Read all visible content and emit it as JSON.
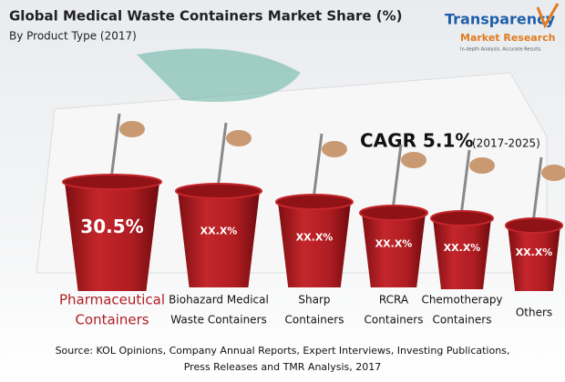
{
  "header": {
    "title": "Global Medical Waste Containers Market Share (%)",
    "subtitle": "By Product Type (2017)"
  },
  "logo": {
    "line1": "Transparency",
    "line2": "Market Research",
    "tagline": "In-depth Analysis. Accurate Results."
  },
  "cagr": {
    "label": "CAGR 5.1%",
    "period": "(2017-2025)"
  },
  "items": [
    {
      "label": [
        "Pharmaceutical",
        "Containers"
      ],
      "share": "30.5%"
    },
    {
      "label": [
        "Biohazard Medical",
        "Waste Containers"
      ],
      "share": "XX.X%"
    },
    {
      "label": [
        "Sharp",
        "Containers"
      ],
      "share": "XX.X%"
    },
    {
      "label": [
        "RCRA",
        "Containers"
      ],
      "share": "XX.X%"
    },
    {
      "label": [
        "Chemotherapy",
        "Containers"
      ],
      "share": "XX.X%"
    },
    {
      "label": [
        "Others"
      ],
      "share": "XX.X%"
    }
  ],
  "source": [
    "Source: KOL Opinions, Company Annual Reports, Expert Interviews, Investing Publications,",
    "Press Releases and TMR Analysis, 2017"
  ]
}
